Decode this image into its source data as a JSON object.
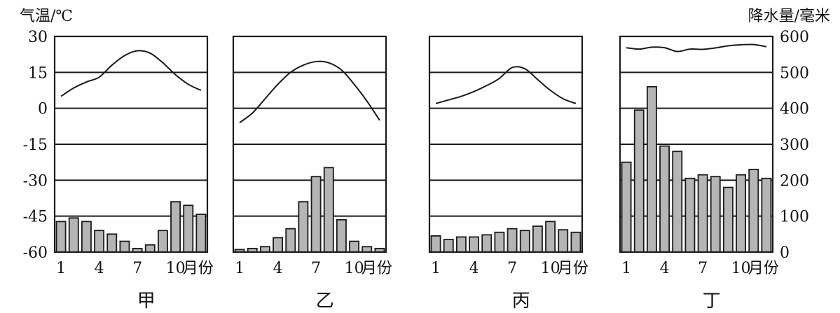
{
  "temp_axis_label": "气温/℃",
  "precip_axis_label": "降水量/毫米",
  "month_suffix": "月份",
  "colors": {
    "bar_fill": "#b5b5b5",
    "line": "#1a1a1a"
  },
  "chart_data": [
    {
      "type": "bar+line",
      "title": "甲",
      "x": [
        1,
        2,
        3,
        4,
        5,
        6,
        7,
        8,
        9,
        10,
        11,
        12
      ],
      "x_tick_labels": [
        "1",
        "4",
        "7",
        "10"
      ],
      "temp_yticks": [
        30,
        15,
        0,
        -15,
        -30,
        -45,
        -60
      ],
      "temp_ylim": [
        -60,
        30
      ],
      "precip_yticks": [
        600,
        500,
        400,
        300,
        200,
        100,
        0
      ],
      "precip_ylim": [
        0,
        600
      ],
      "temperature": [
        5,
        8.5,
        11,
        13,
        18,
        22,
        24,
        23,
        19,
        14,
        10,
        7.5
      ],
      "precipitation": [
        85,
        95,
        85,
        60,
        50,
        30,
        10,
        20,
        60,
        140,
        130,
        105
      ]
    },
    {
      "type": "bar+line",
      "title": "乙",
      "x": [
        1,
        2,
        3,
        4,
        5,
        6,
        7,
        8,
        9,
        10,
        11,
        12
      ],
      "x_tick_labels": [
        "1",
        "4",
        "7",
        "10"
      ],
      "temp_yticks": [
        30,
        15,
        0,
        -15,
        -30,
        -45,
        -60
      ],
      "temp_ylim": [
        -60,
        30
      ],
      "precip_yticks": [
        600,
        500,
        400,
        300,
        200,
        100,
        0
      ],
      "precip_ylim": [
        0,
        600
      ],
      "temperature": [
        -6,
        -2,
        4,
        10,
        15,
        18,
        19.5,
        19,
        16,
        10,
        3,
        -5
      ],
      "precipitation": [
        7,
        10,
        15,
        40,
        65,
        140,
        210,
        235,
        90,
        30,
        15,
        10
      ]
    },
    {
      "type": "bar+line",
      "title": "丙",
      "x": [
        1,
        2,
        3,
        4,
        5,
        6,
        7,
        8,
        9,
        10,
        11,
        12
      ],
      "x_tick_labels": [
        "1",
        "4",
        "7",
        "10"
      ],
      "temp_yticks": [
        30,
        15,
        0,
        -15,
        -30,
        -45,
        -60
      ],
      "temp_ylim": [
        -60,
        30
      ],
      "precip_yticks": [
        600,
        500,
        400,
        300,
        200,
        100,
        0
      ],
      "precip_ylim": [
        0,
        600
      ],
      "temperature": [
        2,
        3.5,
        5,
        7,
        9.5,
        12.5,
        17,
        16.5,
        12,
        7.5,
        4,
        2
      ],
      "precipitation": [
        45,
        35,
        42,
        42,
        48,
        55,
        65,
        60,
        72,
        85,
        62,
        55
      ]
    },
    {
      "type": "bar+line",
      "title": "丁",
      "x": [
        1,
        2,
        3,
        4,
        5,
        6,
        7,
        8,
        9,
        10,
        11,
        12
      ],
      "x_tick_labels": [
        "1",
        "4",
        "7",
        "10"
      ],
      "temp_yticks": [
        30,
        15,
        0,
        -15,
        -30,
        -45,
        -60
      ],
      "temp_ylim": [
        -60,
        30
      ],
      "precip_yticks": [
        600,
        500,
        400,
        300,
        200,
        100,
        0
      ],
      "precip_ylim": [
        0,
        600
      ],
      "temperature": [
        25.3,
        24.7,
        25.5,
        25.3,
        23.7,
        24.7,
        24.6,
        25.2,
        26.1,
        26.5,
        26.6,
        25.7
      ],
      "precipitation": [
        250,
        395,
        460,
        295,
        280,
        205,
        215,
        210,
        180,
        215,
        230,
        205
      ]
    }
  ]
}
